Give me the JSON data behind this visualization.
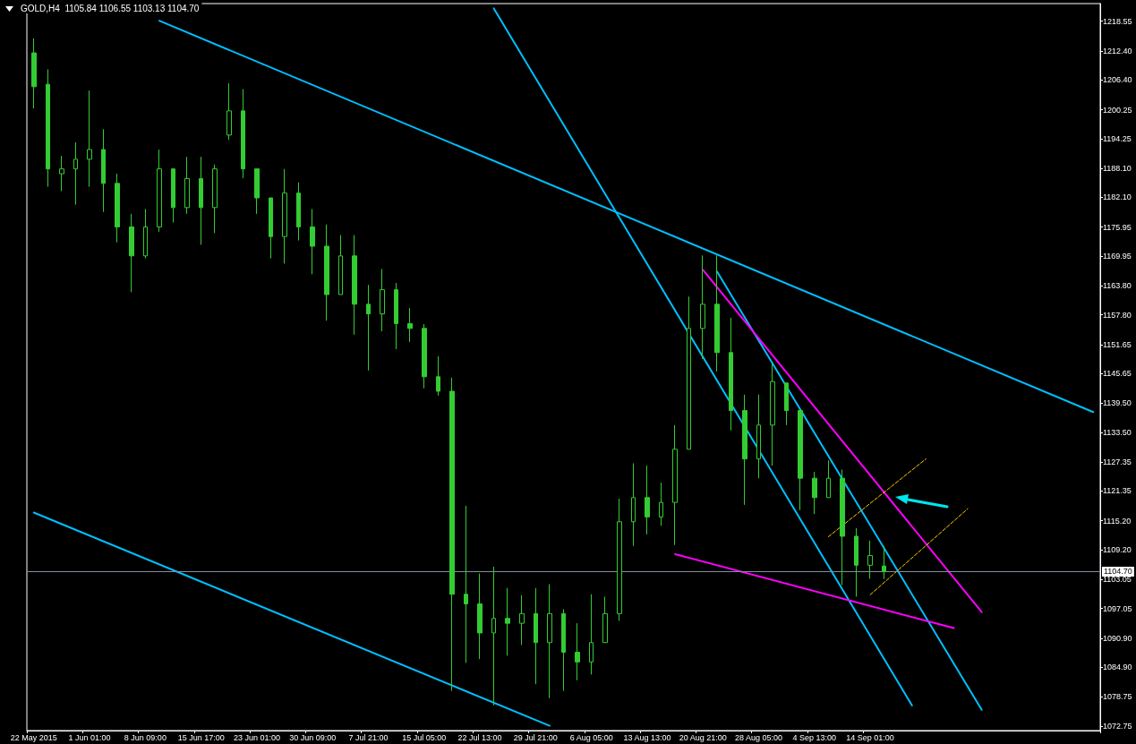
{
  "chart_data": {
    "type": "candlestick",
    "title": "GOLD,H4  1105.84 1106.55 1103.13 1104.70",
    "color": "#33cc33",
    "marker": "none",
    "categories": [
      "22 May 2015",
      null,
      null,
      null,
      "1 Jun 01:00",
      null,
      null,
      null,
      "8 Jun 09:00",
      null,
      null,
      null,
      "15 Jun 17:00",
      null,
      null,
      null,
      "23 Jun 01:00",
      null,
      null,
      null,
      "30 Jun 09:00",
      null,
      null,
      null,
      "7 Jul 21:00",
      null,
      null,
      null,
      "15 Jul 05:00",
      null,
      null,
      null,
      "22 Jul 13:00",
      null,
      null,
      null,
      "29 Jul 21:00",
      null,
      null,
      null,
      "6 Aug 05:00",
      null,
      null,
      null,
      "13 Aug 13:00",
      null,
      null,
      null,
      "20 Aug 21:00",
      null,
      null,
      null,
      "28 Aug 05:00",
      null,
      null,
      null,
      "4 Sep 13:00",
      null,
      null,
      null,
      "14 Sep 01:00",
      null,
      null,
      null,
      null,
      null,
      null,
      null,
      null,
      null,
      null,
      null,
      null,
      null,
      null,
      null,
      null
    ],
    "ohlc": [
      [
        1212,
        1215,
        1200.5,
        1205
      ],
      [
        1205.5,
        1208.6,
        1184.3,
        1188
      ],
      [
        1187,
        1190.7,
        1183.4,
        1188
      ],
      [
        1188,
        1193.5,
        1180.6,
        1190
      ],
      [
        1190,
        1204.2,
        1184.3,
        1192
      ],
      [
        1192,
        1196.2,
        1179.1,
        1185
      ],
      [
        1185,
        1187,
        1172.8,
        1176
      ],
      [
        1176,
        1178.7,
        1162.5,
        1170
      ],
      [
        1170,
        1179.7,
        1169.5,
        1176
      ],
      [
        1176,
        1192,
        1175,
        1188
      ],
      [
        1188,
        1188,
        1176.9,
        1180
      ],
      [
        1180,
        1190.5,
        1178.7,
        1186
      ],
      [
        1186,
        1190.5,
        1172.3,
        1180
      ],
      [
        1180,
        1188.9,
        1174.7,
        1188
      ],
      [
        1195,
        1205.7,
        1194,
        1200
      ],
      [
        1200,
        1204.5,
        1186.1,
        1188
      ],
      [
        1188,
        1188,
        1178.7,
        1182
      ],
      [
        1182,
        1182,
        1169.5,
        1174
      ],
      [
        1174,
        1188,
        1168.4,
        1183
      ],
      [
        1183,
        1185.2,
        1173.2,
        1176
      ],
      [
        1176,
        1179.7,
        1166.2,
        1172
      ],
      [
        1172,
        1176.5,
        1156.6,
        1162
      ],
      [
        1162,
        1174.3,
        1162,
        1170
      ],
      [
        1170,
        1174.3,
        1153.7,
        1160
      ],
      [
        1160,
        1164,
        1146.3,
        1158
      ],
      [
        1158,
        1167.3,
        1154.4,
        1163
      ],
      [
        1163,
        1164.4,
        1150.7,
        1156
      ],
      [
        1156,
        1159.2,
        1152.2,
        1155
      ],
      [
        1155,
        1155.9,
        1142.6,
        1145
      ],
      [
        1145,
        1149.2,
        1141.1,
        1142
      ],
      [
        1142,
        1144.8,
        1080,
        1100
      ],
      [
        1100,
        1118.3,
        1085.8,
        1098
      ],
      [
        1098,
        1104.3,
        1086.6,
        1092
      ],
      [
        1092,
        1105.7,
        1077,
        1095
      ],
      [
        1095,
        1101.3,
        1087.3,
        1094
      ],
      [
        1094,
        1099.8,
        1089.5,
        1096
      ],
      [
        1096,
        1101.3,
        1081.4,
        1090
      ],
      [
        1090,
        1102.1,
        1078.5,
        1096
      ],
      [
        1096,
        1096.9,
        1080,
        1088
      ],
      [
        1088,
        1094,
        1082.2,
        1086
      ],
      [
        1086,
        1100,
        1083.4,
        1090
      ],
      [
        1090,
        1099.5,
        1090,
        1096
      ],
      [
        1096,
        1119.8,
        1094.5,
        1115
      ],
      [
        1115,
        1127.1,
        1110,
        1120
      ],
      [
        1120,
        1126.6,
        1112.4,
        1116
      ],
      [
        1116,
        1123.1,
        1114.2,
        1119
      ],
      [
        1119,
        1135,
        1110.2,
        1130
      ],
      [
        1130,
        1161.6,
        1130,
        1155
      ],
      [
        1155,
        1170.1,
        1148.7,
        1160
      ],
      [
        1160,
        1170.1,
        1146.1,
        1150
      ],
      [
        1150,
        1157.2,
        1133.9,
        1138
      ],
      [
        1138,
        1141.3,
        1118.5,
        1128
      ],
      [
        1128,
        1141.3,
        1124,
        1135
      ],
      [
        1135,
        1147.9,
        1126.6,
        1144
      ],
      [
        1143.7,
        1143.7,
        1135,
        1138
      ],
      [
        1138,
        1138,
        1117.4,
        1124
      ],
      [
        1124,
        1125.3,
        1116.6,
        1120
      ],
      [
        1120,
        1127.7,
        1120,
        1124
      ],
      [
        1124,
        1125.8,
        1101.9,
        1112
      ],
      [
        1112,
        1113.7,
        1099.5,
        1106
      ],
      [
        1106,
        1111.1,
        1103.2,
        1108
      ],
      [
        1105.84,
        1110,
        1103.13,
        1104.7
      ],
      null,
      null,
      null,
      null,
      null,
      null,
      null,
      null,
      null,
      null,
      null,
      null,
      null,
      null,
      null
    ],
    "ylim": [
      1071.8,
      1222.2
    ],
    "yticks": [
      {
        "value": 1072.75,
        "label": "1072.75"
      },
      {
        "value": 1078.75,
        "label": "1078.75"
      },
      {
        "value": 1084.9,
        "label": "1084.90"
      },
      {
        "value": 1090.9,
        "label": "1090.90"
      },
      {
        "value": 1097.05,
        "label": "1097.05"
      },
      {
        "value": 1103.05,
        "label": "1103.05"
      },
      {
        "value": 1109.2,
        "label": "1109.20"
      },
      {
        "value": 1115.2,
        "label": "1115.20"
      },
      {
        "value": 1121.35,
        "label": "1121.35"
      },
      {
        "value": 1127.35,
        "label": "1127.35"
      },
      {
        "value": 1133.5,
        "label": "1133.50"
      },
      {
        "value": 1139.5,
        "label": "1139.50"
      },
      {
        "value": 1145.65,
        "label": "1145.65"
      },
      {
        "value": 1151.65,
        "label": "1151.65"
      },
      {
        "value": 1157.8,
        "label": "1157.80"
      },
      {
        "value": 1163.8,
        "label": "1163.80"
      },
      {
        "value": 1169.95,
        "label": "1169.95"
      },
      {
        "value": 1175.95,
        "label": "1175.95"
      },
      {
        "value": 1182.1,
        "label": "1182.10"
      },
      {
        "value": 1188.1,
        "label": "1188.10"
      },
      {
        "value": 1194.25,
        "label": "1194.25"
      },
      {
        "value": 1200.25,
        "label": "1200.25"
      },
      {
        "value": 1206.4,
        "label": "1206.40"
      },
      {
        "value": 1212.4,
        "label": "1212.40"
      },
      {
        "value": 1218.55,
        "label": "1218.55"
      }
    ],
    "ref_lines": [
      {
        "axis": "y",
        "value": 1104.7,
        "label": "1104.70",
        "color": "#8090a0"
      }
    ],
    "series": [
      {
        "type": "line",
        "color": "#00bfff",
        "line_style": "solid",
        "values": [
          null,
          null,
          null,
          null,
          null,
          null,
          null,
          null,
          null,
          1218.65,
          null,
          null,
          null,
          null,
          null,
          null,
          null,
          null,
          null,
          null,
          null,
          null,
          null,
          null,
          null,
          null,
          null,
          null,
          null,
          null,
          null,
          null,
          null,
          null,
          null,
          null,
          null,
          null,
          null,
          null,
          null,
          null,
          null,
          null,
          null,
          null,
          null,
          null,
          null,
          null,
          null,
          null,
          null,
          null,
          null,
          null,
          null,
          null,
          null,
          null,
          null,
          null,
          null,
          null,
          null,
          null,
          null,
          null,
          null,
          null,
          null,
          null,
          null,
          null,
          null,
          null,
          1137.7
        ]
      },
      {
        "type": "line",
        "color": "#00bfff",
        "line_style": "solid",
        "values": [
          null,
          null,
          null,
          null,
          null,
          null,
          null,
          null,
          null,
          null,
          null,
          null,
          null,
          null,
          null,
          null,
          null,
          null,
          null,
          null,
          null,
          null,
          null,
          null,
          null,
          null,
          null,
          null,
          null,
          null,
          null,
          null,
          null,
          1221.2,
          null,
          null,
          null,
          null,
          null,
          null,
          null,
          null,
          null,
          null,
          null,
          null,
          null,
          null,
          null,
          null,
          null,
          null,
          null,
          null,
          null,
          null,
          null,
          null,
          null,
          null,
          null,
          null,
          null,
          1077.0,
          null,
          null,
          null,
          null,
          null,
          null,
          null,
          null,
          null,
          null,
          null,
          null,
          null
        ]
      },
      {
        "type": "line",
        "color": "#00bfff",
        "line_style": "solid",
        "values": [
          1116.9,
          null,
          null,
          null,
          null,
          null,
          null,
          null,
          null,
          null,
          null,
          null,
          null,
          null,
          null,
          null,
          null,
          null,
          null,
          null,
          null,
          null,
          null,
          null,
          null,
          null,
          null,
          null,
          null,
          null,
          null,
          null,
          null,
          null,
          null,
          null,
          null,
          1072.8,
          null,
          null,
          null,
          null,
          null,
          null,
          null,
          null,
          null,
          null,
          null,
          null,
          null,
          null,
          null,
          null,
          null,
          null,
          null,
          null,
          null,
          null,
          null,
          null,
          null,
          null,
          null,
          null,
          null,
          null,
          null,
          null,
          null,
          null,
          null,
          null,
          null,
          null,
          null
        ]
      },
      {
        "type": "line",
        "color": "#00bfff",
        "line_style": "solid",
        "values": [
          null,
          null,
          null,
          null,
          null,
          null,
          null,
          null,
          null,
          null,
          null,
          null,
          null,
          null,
          null,
          null,
          null,
          null,
          null,
          null,
          null,
          null,
          null,
          null,
          null,
          null,
          null,
          null,
          null,
          null,
          null,
          null,
          null,
          null,
          null,
          null,
          null,
          null,
          null,
          null,
          null,
          null,
          null,
          null,
          null,
          null,
          null,
          null,
          null,
          1166.8,
          null,
          null,
          null,
          null,
          null,
          null,
          null,
          null,
          null,
          null,
          null,
          null,
          null,
          null,
          null,
          null,
          null,
          null,
          1076.1,
          null,
          null,
          null,
          null,
          null,
          null,
          null,
          null
        ]
      },
      {
        "type": "line",
        "color": "#ff00ff",
        "line_style": "solid",
        "values": [
          null,
          null,
          null,
          null,
          null,
          null,
          null,
          null,
          null,
          null,
          null,
          null,
          null,
          null,
          null,
          null,
          null,
          null,
          null,
          null,
          null,
          null,
          null,
          null,
          null,
          null,
          null,
          null,
          null,
          null,
          null,
          null,
          null,
          null,
          null,
          null,
          null,
          null,
          null,
          null,
          null,
          null,
          null,
          null,
          null,
          null,
          null,
          null,
          1167.1,
          null,
          null,
          null,
          null,
          null,
          null,
          null,
          null,
          null,
          null,
          null,
          null,
          null,
          null,
          null,
          null,
          null,
          null,
          null,
          1096.3,
          null,
          null,
          null,
          null,
          null,
          null,
          null,
          null
        ]
      },
      {
        "type": "line",
        "color": "#ff00ff",
        "line_style": "solid",
        "values": [
          null,
          null,
          null,
          null,
          null,
          null,
          null,
          null,
          null,
          null,
          null,
          null,
          null,
          null,
          null,
          null,
          null,
          null,
          null,
          null,
          null,
          null,
          null,
          null,
          null,
          null,
          null,
          null,
          null,
          null,
          null,
          null,
          null,
          null,
          null,
          null,
          null,
          null,
          null,
          null,
          null,
          null,
          null,
          null,
          null,
          null,
          1108.3,
          null,
          null,
          null,
          null,
          null,
          null,
          null,
          null,
          null,
          null,
          null,
          null,
          null,
          null,
          null,
          null,
          null,
          null,
          null,
          1093.0,
          null,
          null,
          null,
          null,
          null,
          null,
          null,
          null,
          null,
          null
        ]
      },
      {
        "type": "line",
        "color": "#ffcc00",
        "line_style": "dashed",
        "values": [
          null,
          null,
          null,
          null,
          null,
          null,
          null,
          null,
          null,
          null,
          null,
          null,
          null,
          null,
          null,
          null,
          null,
          null,
          null,
          null,
          null,
          null,
          null,
          null,
          null,
          null,
          null,
          null,
          null,
          null,
          null,
          null,
          null,
          null,
          null,
          null,
          null,
          null,
          null,
          null,
          null,
          null,
          null,
          null,
          null,
          null,
          null,
          null,
          null,
          null,
          null,
          null,
          null,
          null,
          null,
          null,
          null,
          1111.9,
          null,
          null,
          null,
          null,
          null,
          null,
          1128.0,
          null,
          null,
          null,
          null,
          null,
          null,
          null,
          null,
          null,
          null,
          null,
          null
        ]
      },
      {
        "type": "line",
        "color": "#ffcc00",
        "line_style": "dashed",
        "values": [
          null,
          null,
          null,
          null,
          null,
          null,
          null,
          null,
          null,
          null,
          null,
          null,
          null,
          null,
          null,
          null,
          null,
          null,
          null,
          null,
          null,
          null,
          null,
          null,
          null,
          null,
          null,
          null,
          null,
          null,
          null,
          null,
          null,
          null,
          null,
          null,
          null,
          null,
          null,
          null,
          null,
          null,
          null,
          null,
          null,
          null,
          null,
          null,
          null,
          null,
          null,
          null,
          null,
          null,
          null,
          null,
          null,
          null,
          null,
          null,
          1099.9,
          null,
          null,
          null,
          null,
          null,
          null,
          1117.7,
          null,
          null,
          null,
          null,
          null,
          null,
          null,
          null,
          null
        ]
      }
    ]
  }
}
